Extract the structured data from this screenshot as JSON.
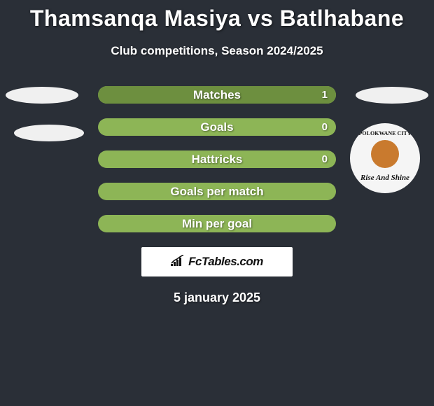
{
  "title": "Thamsanqa Masiya vs Batlhabane",
  "subtitle": "Club competitions, Season 2024/2025",
  "date": "5 january 2025",
  "site_label": "FcTables.com",
  "colors": {
    "background": "#2a2f37",
    "bar_bg": "#8db556",
    "bar_fill": "#6d8f3f",
    "text": "#ffffff",
    "box_bg": "#ffffff",
    "box_text": "#111111"
  },
  "bars": [
    {
      "label": "Matches",
      "value": "1",
      "fill_pct": 100
    },
    {
      "label": "Goals",
      "value": "0",
      "fill_pct": 0
    },
    {
      "label": "Hattricks",
      "value": "0",
      "fill_pct": 0
    },
    {
      "label": "Goals per match",
      "value": "",
      "fill_pct": 0
    },
    {
      "label": "Min per goal",
      "value": "",
      "fill_pct": 0
    }
  ],
  "badge": {
    "top_text": "POLOKWANE CITY",
    "bottom_text": "Rise And Shine"
  }
}
